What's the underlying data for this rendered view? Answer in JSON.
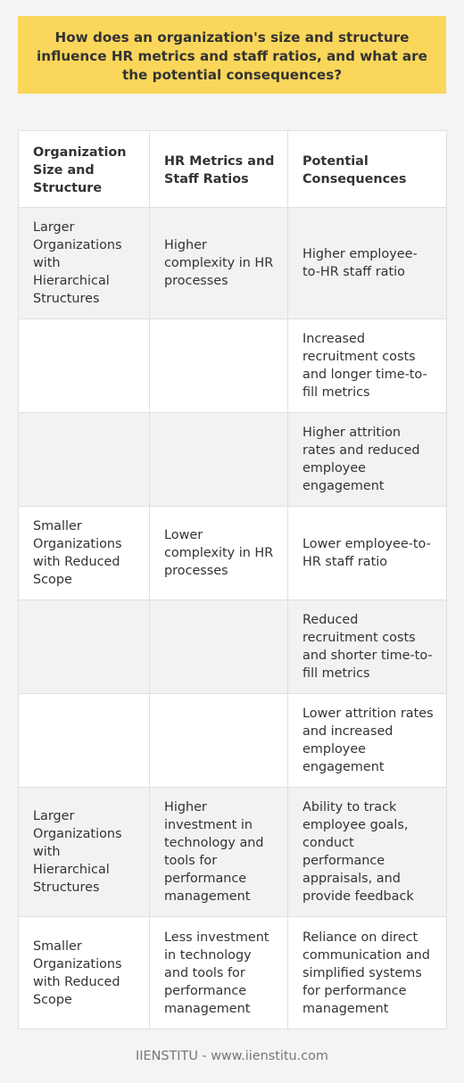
{
  "title": "How does an organization's size and structure influence HR metrics and staff ratios, and what are the potential consequences?",
  "table": {
    "headers": [
      "Organization Size and Structure",
      "HR Metrics and Staff Ratios",
      "Potential Consequences"
    ],
    "rows": [
      [
        "Larger Organizations with Hierarchical Structures",
        "Higher complexity in HR processes",
        "Higher employee-to-HR staff ratio"
      ],
      [
        "",
        "",
        "Increased recruitment costs and longer time-to-fill metrics"
      ],
      [
        "",
        "",
        "Higher attrition rates and reduced employee engagement"
      ],
      [
        "Smaller Organizations with Reduced Scope",
        "Lower complexity in HR processes",
        "Lower employee-to-HR staff ratio"
      ],
      [
        "",
        "",
        "Reduced recruitment costs and shorter time-to-fill metrics"
      ],
      [
        "",
        "",
        "Lower attrition rates and increased employee engagement"
      ],
      [
        "Larger Organizations with Hierarchical Structures",
        "Higher investment in technology and tools for performance management",
        "Ability to track employee goals, conduct performance appraisals, and provide feedback"
      ],
      [
        "Smaller Organizations with Reduced Scope",
        "Less investment in technology and tools for performance management",
        "Reliance on direct communication and simplified systems for performance management"
      ]
    ]
  },
  "footer": "IIENSTITU - www.iienstitu.com",
  "colors": {
    "title_background": "#fad65a",
    "page_background": "#f4f4f4",
    "row_alt": "#f2f2f2",
    "border": "#e0e0e0"
  }
}
